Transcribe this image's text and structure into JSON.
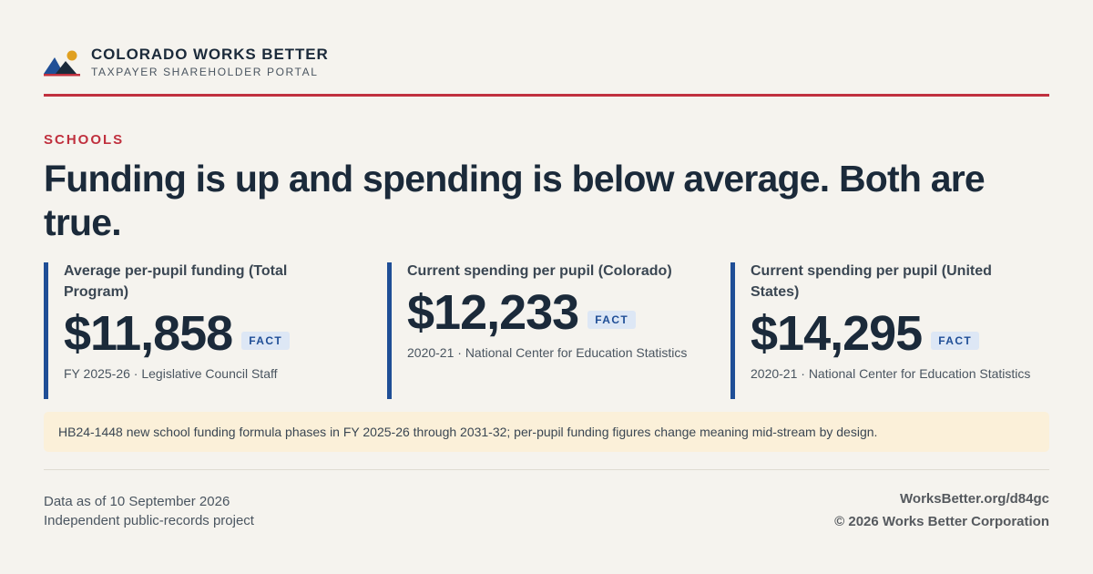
{
  "brand": {
    "name": "COLORADO WORKS BETTER",
    "subtitle": "TAXPAYER SHAREHOLDER PORTAL",
    "logo_icon": "mountains-sun-icon"
  },
  "colors": {
    "accent_red": "#c0303e",
    "accent_blue": "#1f4e96",
    "sun": "#e0a020",
    "note_bg": "#fbf0d9"
  },
  "section": "SCHOOLS",
  "headline": "Funding is up and spending is below average. Both are true.",
  "stats": [
    {
      "label": "Average per-pupil funding (Total Program)",
      "value": "$11,858",
      "badge": "FACT",
      "source": "FY 2025-26 · Legislative Council Staff"
    },
    {
      "label": "Current spending per pupil (Colorado)",
      "value": "$12,233",
      "badge": "FACT",
      "source": "2020-21 · National Center for Education Statistics"
    },
    {
      "label": "Current spending per pupil (United States)",
      "value": "$14,295",
      "badge": "FACT",
      "source": "2020-21 · National Center for Education Statistics"
    }
  ],
  "note": "HB24-1448 new school funding formula phases in FY 2025-26 through 2031-32; per-pupil funding figures change meaning mid-stream by design.",
  "footer": {
    "data_as_of": "Data as of 10 September 2026",
    "project": "Independent public-records project",
    "url": "WorksBetter.org/d84gc",
    "copyright": "© 2026 Works Better Corporation"
  }
}
